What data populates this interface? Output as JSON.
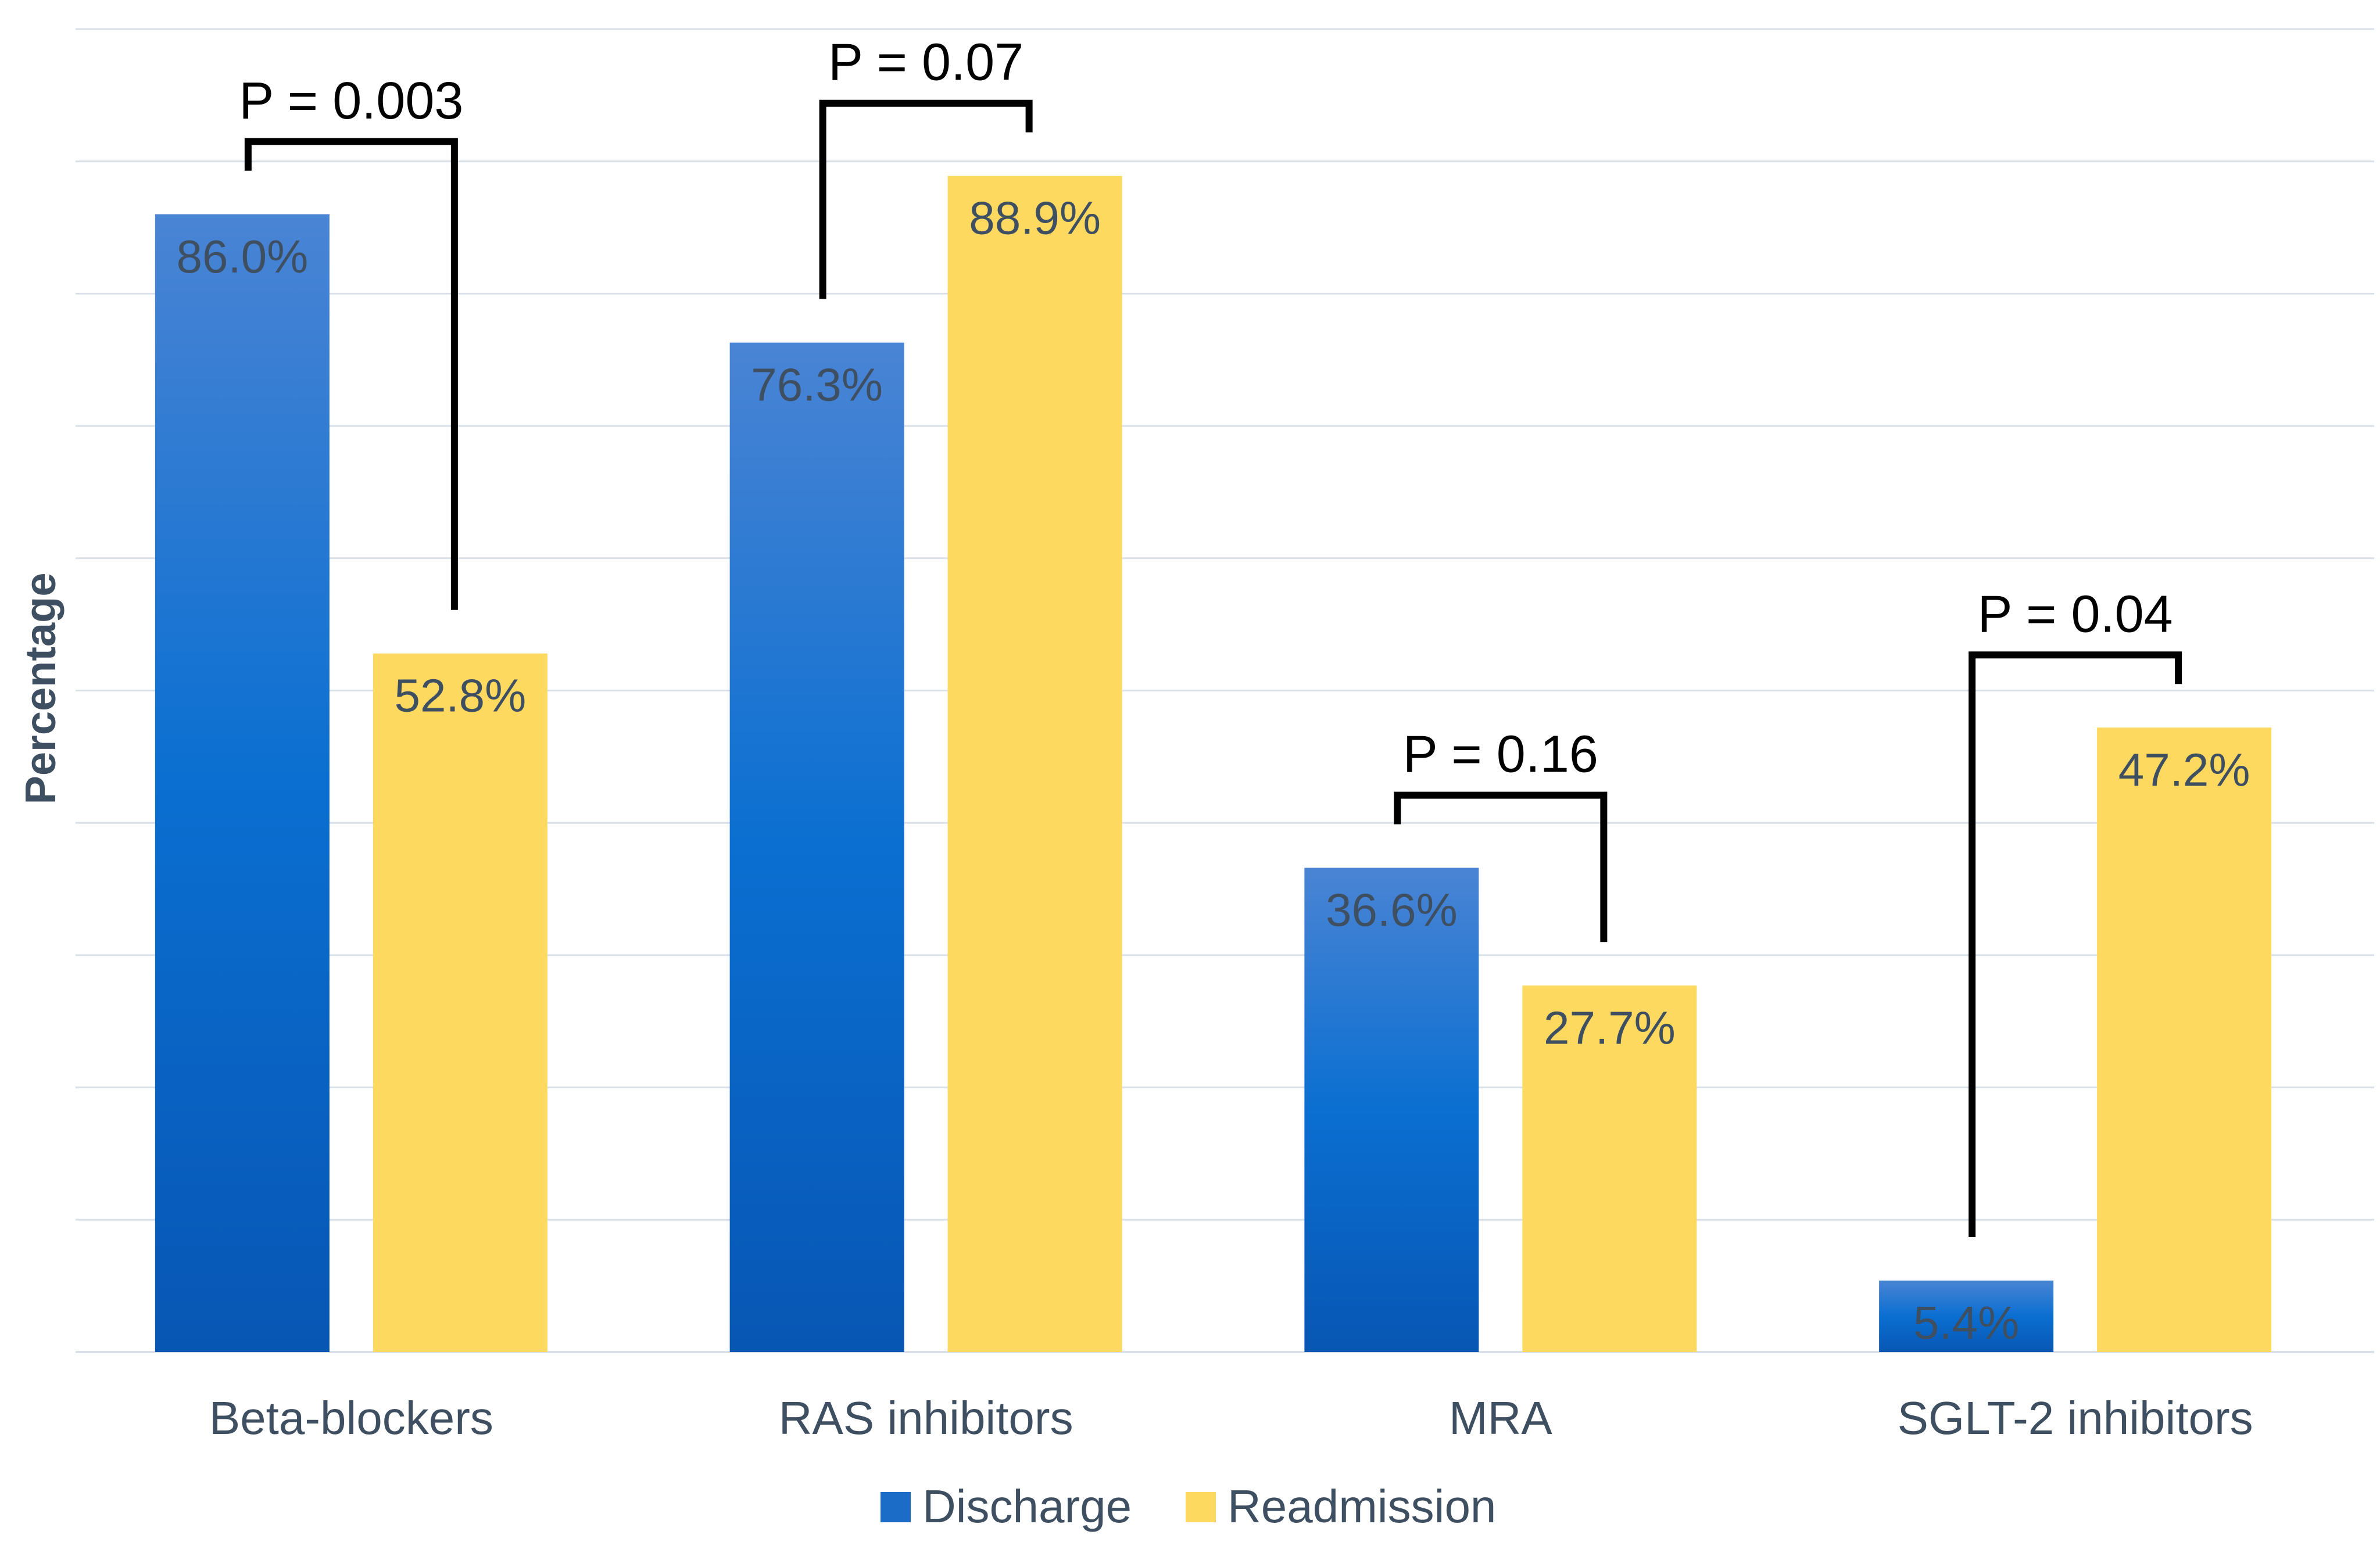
{
  "chart_data": {
    "type": "bar",
    "title": "",
    "xlabel": "",
    "ylabel": "Percentage",
    "ylim": [
      0,
      100
    ],
    "grid": true,
    "legend_position": "bottom",
    "categories": [
      "Beta-blockers",
      "RAS inhibitors",
      "MRA",
      "SGLT-2 inhibitors"
    ],
    "series": [
      {
        "name": "Discharge",
        "values": [
          86.0,
          76.3,
          36.6,
          5.4
        ],
        "labels": [
          "86.0%",
          "76.3%",
          "36.6%",
          "5.4%"
        ],
        "color": "#1268c8"
      },
      {
        "name": "Readmission",
        "values": [
          52.8,
          88.9,
          27.7,
          47.2
        ],
        "labels": [
          "52.8%",
          "88.9%",
          "27.7%",
          "47.2%"
        ],
        "color": "#fdd960"
      }
    ],
    "annotations": [
      {
        "category": "Beta-blockers",
        "text": "P = 0.003"
      },
      {
        "category": "RAS inhibitors",
        "text": "P = 0.07"
      },
      {
        "category": "MRA",
        "text": "P = 0.16"
      },
      {
        "category": "SGLT-2 inhibitors",
        "text": "P = 0.04"
      }
    ]
  }
}
